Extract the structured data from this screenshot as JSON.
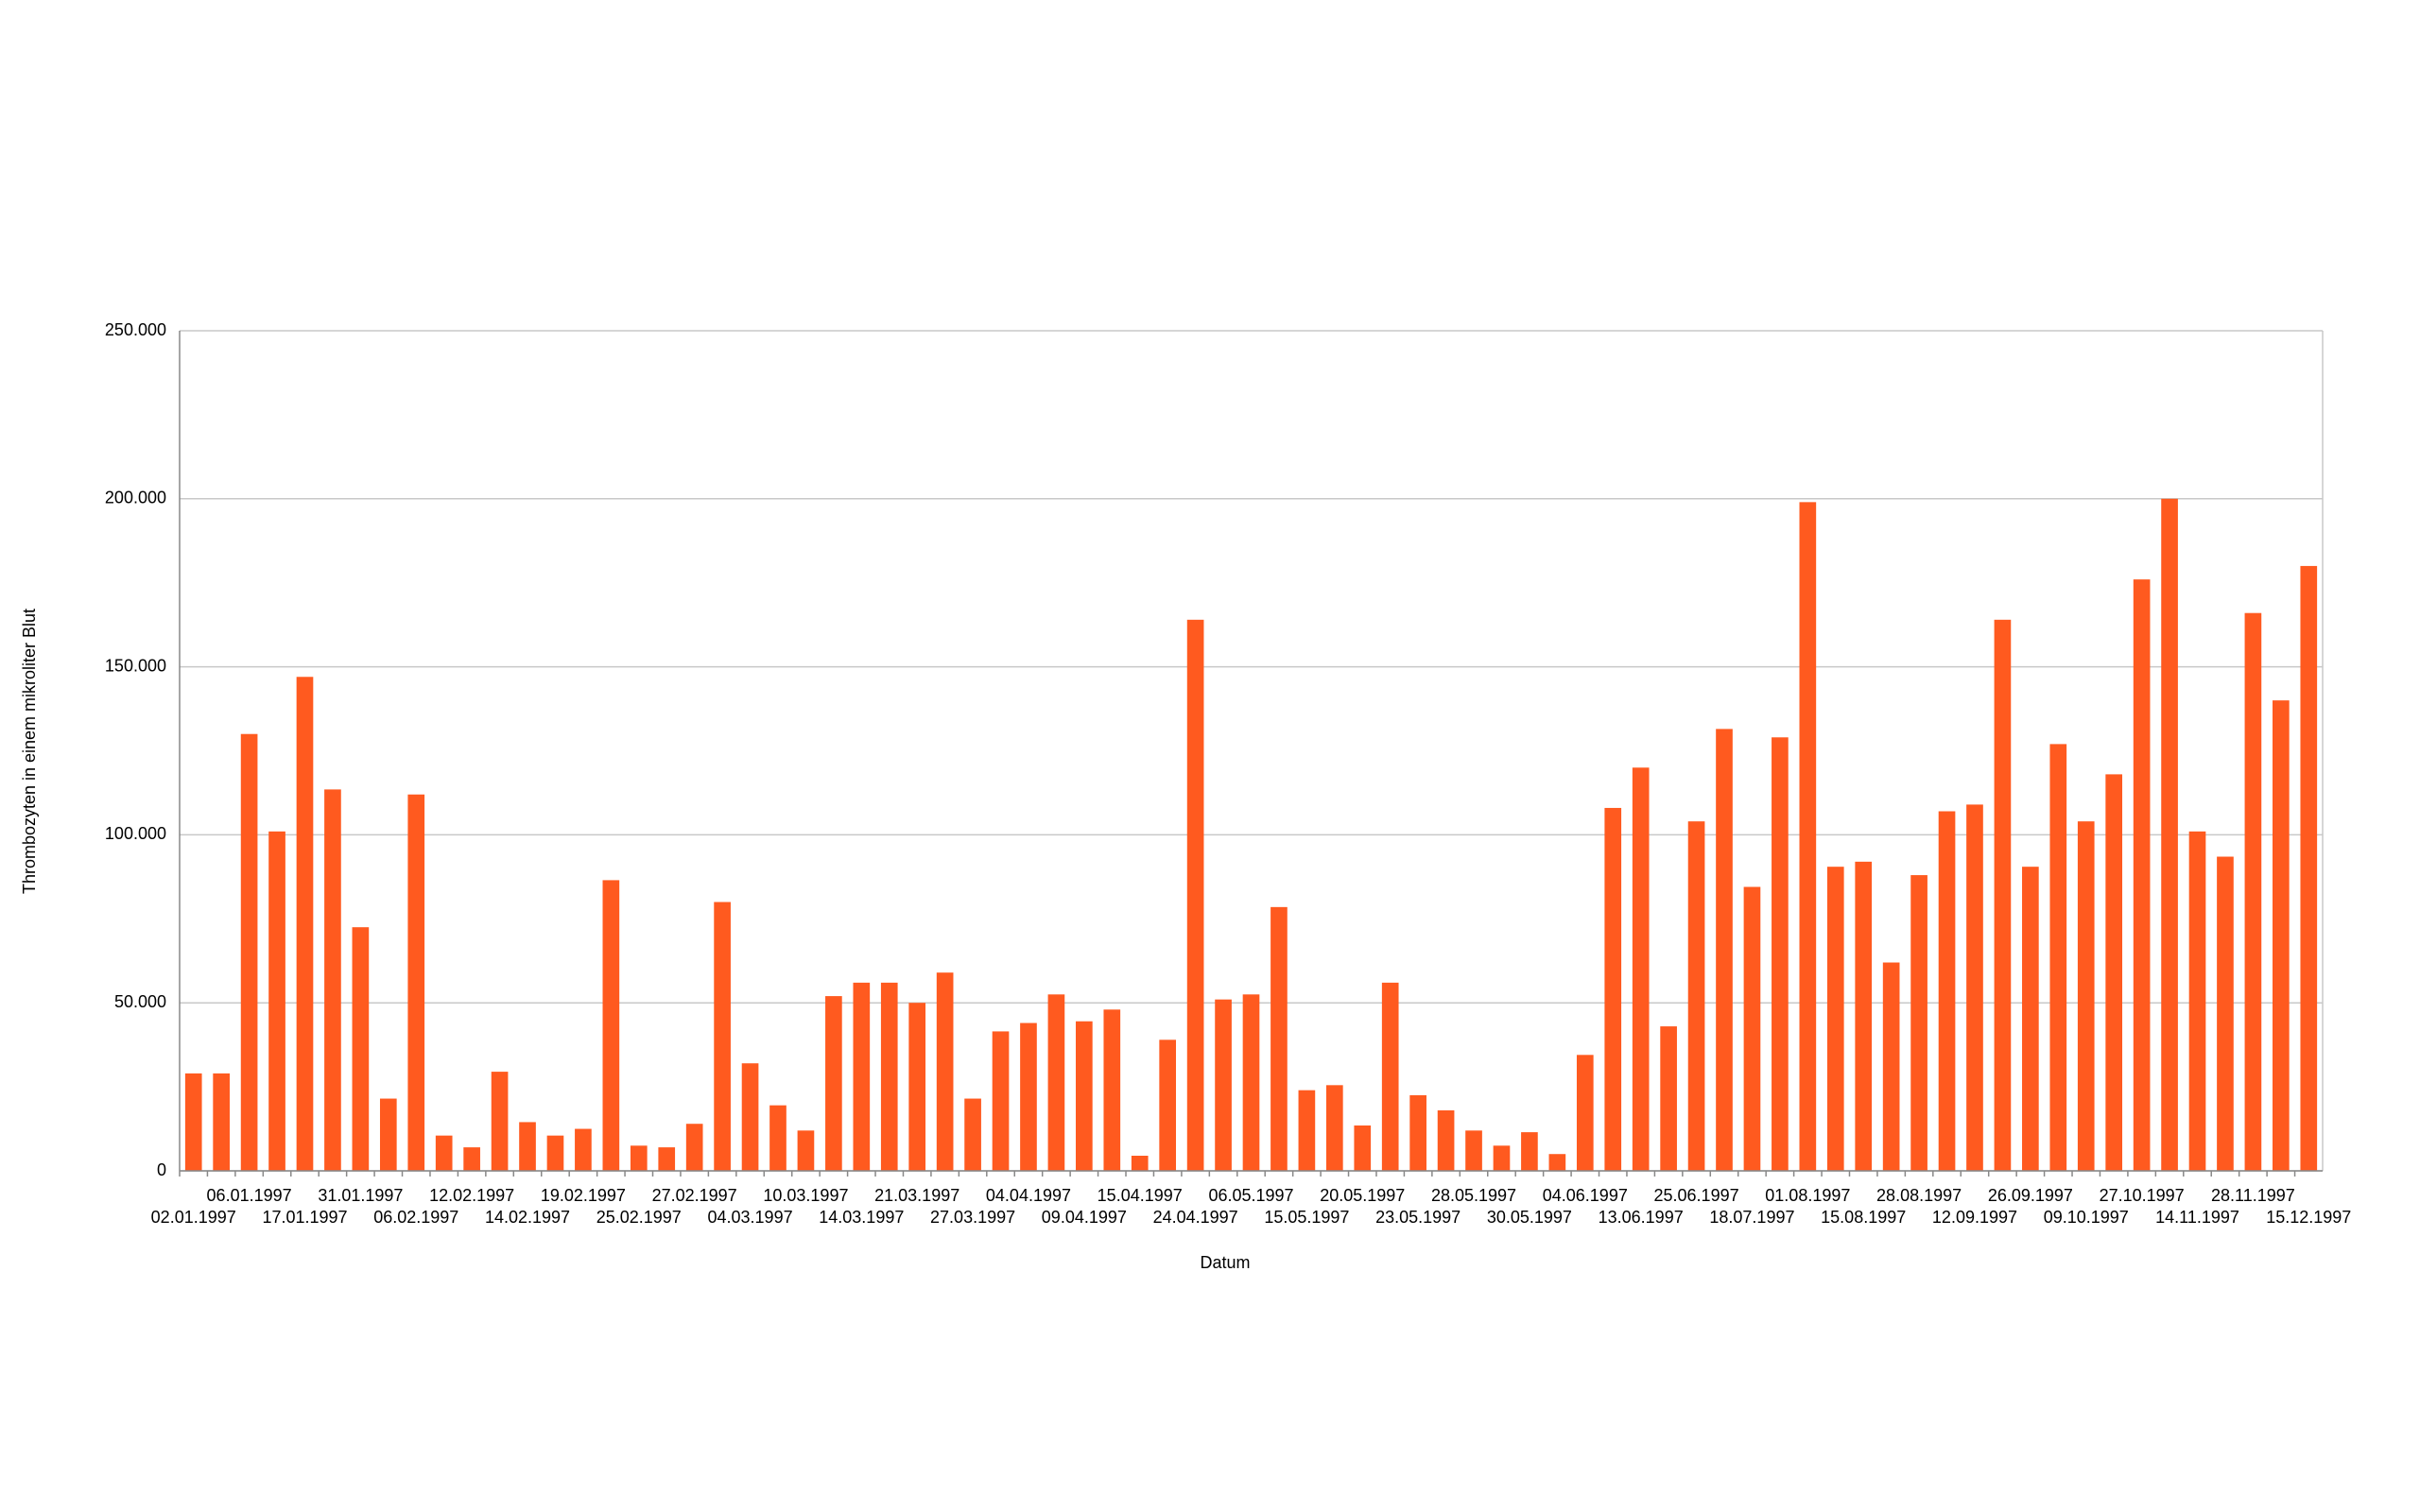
{
  "chart_data": {
    "type": "bar",
    "x_label": "Datum",
    "y_label": "Thrombozyten in einem mikroliter Blut",
    "categories": [
      "02.01.1997",
      null,
      "06.01.1997",
      null,
      "17.01.1997",
      null,
      "31.01.1997",
      null,
      "06.02.1997",
      null,
      "12.02.1997",
      null,
      "14.02.1997",
      null,
      "19.02.1997",
      null,
      "25.02.1997",
      null,
      "27.02.1997",
      null,
      "04.03.1997",
      null,
      "10.03.1997",
      null,
      "14.03.1997",
      null,
      "21.03.1997",
      null,
      "27.03.1997",
      null,
      "04.04.1997",
      null,
      "09.04.1997",
      null,
      "15.04.1997",
      null,
      "24.04.1997",
      null,
      "06.05.1997",
      null,
      "15.05.1997",
      null,
      "20.05.1997",
      null,
      "23.05.1997",
      null,
      "28.05.1997",
      null,
      "30.05.1997",
      null,
      "04.06.1997",
      null,
      "13.06.1997",
      null,
      "25.06.1997",
      null,
      "18.07.1997",
      null,
      "01.08.1997",
      null,
      "15.08.1997",
      null,
      "28.08.1997",
      null,
      "12.09.1997",
      null,
      "26.09.1997",
      null,
      "09.10.1997",
      null,
      "27.10.1997",
      null,
      "14.11.1997",
      null,
      "28.11.1997",
      null,
      "15.12.1997"
    ],
    "values": [
      29000,
      29000,
      130000,
      101000,
      147000,
      113500,
      72500,
      21500,
      112000,
      10500,
      7000,
      29500,
      14500,
      10500,
      12500,
      86500,
      7500,
      7000,
      14000,
      80000,
      32000,
      19500,
      12000,
      52000,
      56000,
      56000,
      50000,
      59000,
      21500,
      41500,
      44000,
      52500,
      44500,
      48000,
      4500,
      39000,
      164000,
      51000,
      52500,
      78500,
      24000,
      25500,
      13500,
      56000,
      22500,
      18000,
      12000,
      7500,
      11500,
      5000,
      34500,
      108000,
      120000,
      43000,
      104000,
      131500,
      84500,
      129000,
      199000,
      90500,
      92000,
      62000,
      88000,
      107000,
      109000,
      164000,
      90500,
      127000,
      104000,
      118000,
      176000,
      200000,
      101000,
      93500,
      166000,
      140000,
      180000
    ],
    "color": "#ff5a1f",
    "ylim": [
      0,
      250000
    ],
    "yticks": [
      0,
      {
        "value": 50000,
        "label": "50.000"
      },
      {
        "value": 100000,
        "label": "100.000"
      },
      {
        "value": 150000,
        "label": "150.000"
      },
      {
        "value": 200000,
        "label": "200.000"
      },
      {
        "value": 250000,
        "label": "250.000"
      }
    ],
    "grid": true
  }
}
